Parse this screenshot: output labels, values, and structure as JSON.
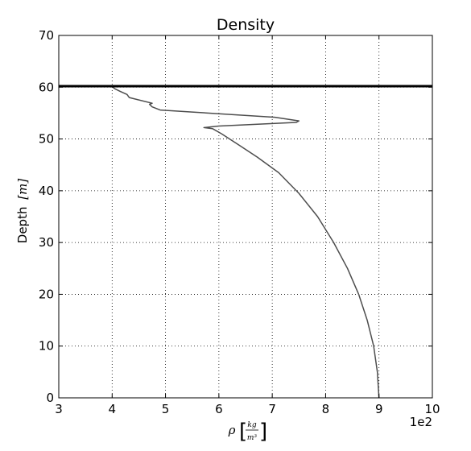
{
  "chart_data": {
    "type": "line",
    "title": "Density",
    "ylabel": "Depth",
    "ylabel_unit": "m",
    "xlabel_symbol": "ρ",
    "xlabel_unit_num": "kg",
    "xlabel_unit_den": "m³",
    "x_multiplier_label": "1e2",
    "xlim": [
      3,
      10
    ],
    "ylim": [
      0,
      70
    ],
    "x_ticks": [
      "3",
      "4",
      "5",
      "6",
      "7",
      "8",
      "9",
      "10"
    ],
    "y_ticks": [
      "0",
      "10",
      "20",
      "30",
      "40",
      "50",
      "60",
      "70"
    ],
    "grid": true,
    "line_color": "#4d4d4d",
    "hline": {
      "y": 60.2,
      "color": "#000000"
    },
    "series": [
      {
        "x": [
          9.0,
          8.97,
          8.9,
          8.78,
          8.62,
          8.41,
          8.15,
          7.85,
          7.5,
          7.12,
          6.72,
          6.35,
          6.05,
          5.88,
          5.72,
          6.0,
          7.45,
          7.5,
          7.05,
          5.5,
          4.9,
          4.75,
          4.7,
          4.75,
          4.32,
          4.28,
          4.15,
          4.05,
          4.0
        ],
        "y": [
          0,
          5,
          10,
          15,
          20,
          25,
          30,
          35,
          39.5,
          43.5,
          46.5,
          49,
          51,
          52,
          52.2,
          52.5,
          53.2,
          53.5,
          54.2,
          55.2,
          55.6,
          56.2,
          56.7,
          56.9,
          58,
          58.6,
          59.2,
          59.7,
          60.1
        ]
      }
    ]
  }
}
